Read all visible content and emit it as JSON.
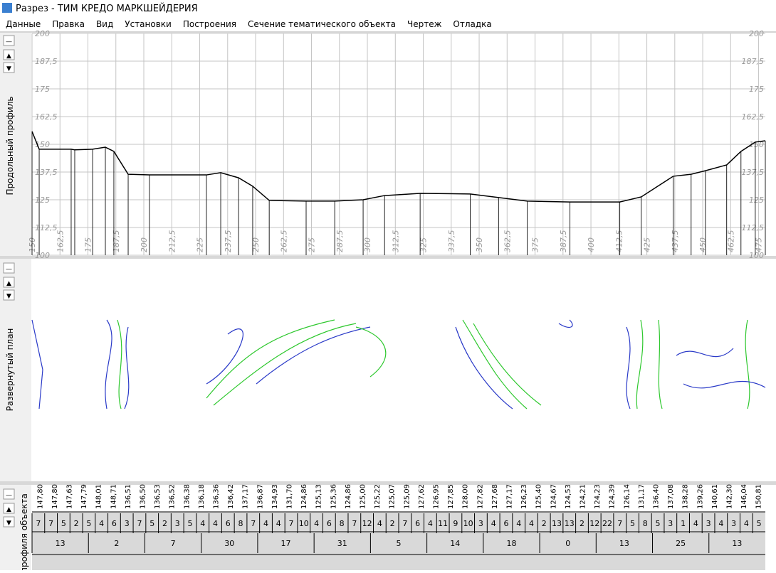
{
  "window": {
    "title": "Разрез - ТИМ КРЕДО МАРКШЕЙДЕРИЯ"
  },
  "menu": [
    "Данные",
    "Правка",
    "Вид",
    "Установки",
    "Построения",
    "Сечение тематического объекта",
    "Чертеж",
    "Отладка"
  ],
  "panels": {
    "profile_label": "Продольный профиль",
    "plan_label": "Развернутый план",
    "table_label": "профиля объекта"
  },
  "chart_data": {
    "type": "line",
    "color": "#000000",
    "grid": true,
    "x": [
      150,
      153.2,
      167.5,
      169.1,
      177.1,
      182.8,
      186.6,
      193,
      202.5,
      228,
      234.4,
      242.4,
      248.7,
      256.1,
      272.6,
      285.4,
      298.1,
      307.7,
      323.6,
      346,
      358.7,
      371.5,
      390.6,
      412.9,
      422.5,
      436.8,
      444.8,
      451.2,
      460.7,
      467.1,
      473.5,
      478
    ],
    "values": [
      155.8,
      147.8,
      147.8,
      147.5,
      147.8,
      148.7,
      146.8,
      136.5,
      136.2,
      136.2,
      137.2,
      134.9,
      131.1,
      124.7,
      124.4,
      124.4,
      125,
      126.9,
      127.9,
      127.6,
      126,
      124.4,
      124,
      124,
      126.3,
      135.6,
      136.5,
      138.1,
      140.7,
      146.8,
      151,
      151.6
    ],
    "xlim": [
      150,
      478
    ],
    "ylim": [
      100,
      200
    ],
    "xticks": [
      150,
      {
        "value": 162.5,
        "label": "162,5"
      },
      175,
      {
        "value": 187.5,
        "label": "187,5"
      },
      200,
      {
        "value": 212.5,
        "label": "212,5"
      },
      225,
      {
        "value": 237.5,
        "label": "237,5"
      },
      250,
      {
        "value": 262.5,
        "label": "262,5"
      },
      275,
      {
        "value": 287.5,
        "label": "287,5"
      },
      300,
      {
        "value": 312.5,
        "label": "312,5"
      },
      325,
      {
        "value": 337.5,
        "label": "337,5"
      },
      350,
      {
        "value": 362.5,
        "label": "362,5"
      },
      375,
      {
        "value": 387.5,
        "label": "387,5"
      },
      400,
      {
        "value": 412.5,
        "label": "412,5"
      },
      425,
      {
        "value": 437.5,
        "label": "437,5"
      },
      450,
      {
        "value": 462.5,
        "label": "462,5"
      },
      475
    ],
    "yticks": [
      100,
      {
        "value": 112.5,
        "label": "112,5"
      },
      125,
      {
        "value": 137.5,
        "label": "137,5"
      },
      150,
      {
        "value": 162.5,
        "label": "162,5"
      },
      175,
      {
        "value": 187.5,
        "label": "187,5"
      },
      200
    ]
  },
  "table": {
    "elevations": [
      "147,80",
      "147,80",
      "147,63",
      "147,79",
      "148,01",
      "148,71",
      "136,51",
      "136,50",
      "136,53",
      "136,52",
      "136,38",
      "136,18",
      "136,36",
      "136,42",
      "137,17",
      "136,87",
      "134,93",
      "131,70",
      "124,86",
      "125,13",
      "125,36",
      "124,86",
      "125,00",
      "125,22",
      "125,07",
      "125,09",
      "127,62",
      "126,95",
      "127,85",
      "128,00",
      "127,82",
      "127,68",
      "127,17",
      "126,23",
      "125,40",
      "124,67",
      "124,53",
      "124,21",
      "124,23",
      "124,39",
      "126,14",
      "131,17",
      "136,40",
      "137,08",
      "138,28",
      "139,26",
      "140,61",
      "142,30",
      "146,04",
      "150,81"
    ],
    "row2": [
      "7",
      "7",
      "5",
      "2",
      "5",
      "4",
      "6",
      "3",
      "7",
      "5",
      "2",
      "3",
      "5",
      "4",
      "4",
      "6",
      "8",
      "7",
      "4",
      "4",
      "7",
      "10",
      "4",
      "6",
      "8",
      "7",
      "12",
      "4",
      "2",
      "7",
      "6",
      "4",
      "11",
      "9",
      "10",
      "3",
      "4",
      "6",
      "4",
      "4",
      "2",
      "13",
      "13",
      "2",
      "12",
      "22",
      "7",
      "5",
      "8",
      "5",
      "3",
      "1",
      "4",
      "3",
      "4",
      "3",
      "4",
      "5"
    ],
    "row3": [
      "13",
      "2",
      "7",
      "30",
      "17",
      "31",
      "5",
      "14",
      "18",
      "0",
      "13",
      "25",
      "13"
    ]
  }
}
